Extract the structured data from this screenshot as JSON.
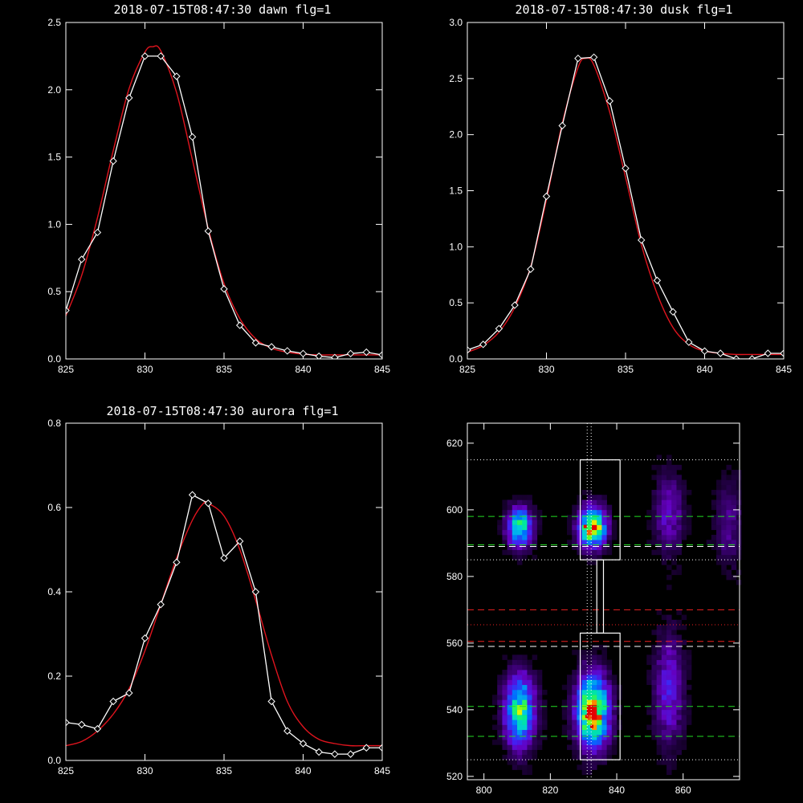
{
  "colors": {
    "background": "#000000",
    "axes": "#ffffff",
    "data_line": "#ffffff",
    "fit_line": "#e0141e",
    "green_guides": "#22dd22",
    "red_guides": "#ee2020",
    "white_guides": "#ffffff"
  },
  "chart_data": [
    {
      "type": "line",
      "title": "2018-07-15T08:47:30 dawn flg=1",
      "xlim": [
        825,
        845
      ],
      "ylim": [
        0,
        2.5
      ],
      "xticks": [
        825,
        830,
        835,
        840,
        845
      ],
      "yticks": [
        0.0,
        0.5,
        1.0,
        1.5,
        2.0,
        2.5
      ],
      "ytick_labels": [
        "0.0",
        "0.5",
        "1.0",
        "1.5",
        "2.0",
        "2.5"
      ],
      "series": [
        {
          "kind": "data",
          "marker": "diamond",
          "x": [
            825,
            826,
            827,
            828,
            829,
            830,
            831,
            832,
            833,
            834,
            835,
            836,
            837,
            838,
            839,
            840,
            841,
            842,
            843,
            844,
            845
          ],
          "y": [
            0.36,
            0.74,
            0.94,
            1.47,
            1.94,
            2.25,
            2.25,
            2.1,
            1.65,
            0.95,
            0.52,
            0.25,
            0.12,
            0.09,
            0.06,
            0.04,
            0.02,
            0.01,
            0.04,
            0.05,
            0.03
          ]
        },
        {
          "kind": "fit",
          "x": [
            825,
            826,
            827,
            828,
            829,
            830,
            830.5,
            831,
            832,
            833,
            834,
            835,
            836,
            837,
            838,
            839,
            840,
            841,
            842,
            843,
            844,
            845
          ],
          "y": [
            0.32,
            0.62,
            1.05,
            1.55,
            2.01,
            2.28,
            2.32,
            2.29,
            1.98,
            1.48,
            0.97,
            0.56,
            0.3,
            0.15,
            0.08,
            0.05,
            0.035,
            0.03,
            0.03,
            0.03,
            0.03,
            0.03
          ]
        }
      ]
    },
    {
      "type": "line",
      "title": "2018-07-15T08:47:30 dusk flg=1",
      "xlim": [
        825,
        845
      ],
      "ylim": [
        0,
        3.0
      ],
      "xticks": [
        825,
        830,
        835,
        840,
        845
      ],
      "yticks": [
        0.0,
        0.5,
        1.0,
        1.5,
        2.0,
        2.5,
        3.0
      ],
      "ytick_labels": [
        "0.0",
        "0.5",
        "1.0",
        "1.5",
        "2.0",
        "2.5",
        "3.0"
      ],
      "series": [
        {
          "kind": "data",
          "marker": "diamond",
          "x": [
            825,
            826,
            827,
            828,
            829,
            830,
            831,
            832,
            833,
            834,
            835,
            836,
            837,
            838,
            839,
            840,
            841,
            842,
            843,
            844,
            845
          ],
          "y": [
            0.08,
            0.13,
            0.27,
            0.48,
            0.8,
            1.45,
            2.08,
            2.68,
            2.69,
            2.3,
            1.7,
            1.06,
            0.7,
            0.42,
            0.15,
            0.07,
            0.05,
            0.0,
            0.0,
            0.05,
            0.05
          ]
        },
        {
          "kind": "fit",
          "x": [
            825,
            826,
            827,
            828,
            829,
            830,
            831,
            832,
            832.5,
            833,
            834,
            835,
            836,
            837,
            838,
            839,
            840,
            841,
            842,
            843,
            844,
            845
          ],
          "y": [
            0.06,
            0.12,
            0.24,
            0.46,
            0.82,
            1.42,
            2.1,
            2.6,
            2.68,
            2.62,
            2.2,
            1.62,
            1.02,
            0.58,
            0.28,
            0.13,
            0.07,
            0.05,
            0.04,
            0.04,
            0.04,
            0.04
          ]
        }
      ]
    },
    {
      "type": "line",
      "title": "2018-07-15T08:47:30 aurora flg=1",
      "xlim": [
        825,
        845
      ],
      "ylim": [
        0,
        0.8
      ],
      "xticks": [
        825,
        830,
        835,
        840,
        845
      ],
      "yticks": [
        0.0,
        0.2,
        0.4,
        0.6,
        0.8
      ],
      "ytick_labels": [
        "0.0",
        "0.2",
        "0.4",
        "0.6",
        "0.8"
      ],
      "series": [
        {
          "kind": "data",
          "marker": "diamond",
          "x": [
            825,
            826,
            827,
            828,
            829,
            830,
            831,
            832,
            833,
            834,
            835,
            836,
            837,
            838,
            839,
            840,
            841,
            842,
            843,
            844,
            845
          ],
          "y": [
            0.09,
            0.085,
            0.075,
            0.14,
            0.16,
            0.29,
            0.37,
            0.47,
            0.63,
            0.61,
            0.48,
            0.52,
            0.4,
            0.14,
            0.07,
            0.04,
            0.02,
            0.015,
            0.015,
            0.03,
            0.03
          ]
        },
        {
          "kind": "fit",
          "x": [
            825,
            826,
            827,
            828,
            829,
            830,
            831,
            832,
            833,
            833.7,
            834,
            835,
            836,
            837,
            838,
            839,
            840,
            841,
            842,
            843,
            844,
            845
          ],
          "y": [
            0.035,
            0.045,
            0.07,
            0.11,
            0.17,
            0.26,
            0.37,
            0.48,
            0.57,
            0.61,
            0.61,
            0.58,
            0.5,
            0.38,
            0.25,
            0.14,
            0.08,
            0.05,
            0.04,
            0.035,
            0.035,
            0.035
          ]
        }
      ]
    },
    {
      "type": "heatmap",
      "title": "",
      "xlim": [
        795,
        877
      ],
      "ylim": [
        519,
        626
      ],
      "xticks": [
        800,
        820,
        840,
        860
      ],
      "yticks": [
        520,
        540,
        560,
        580,
        600,
        620
      ],
      "blobs": [
        {
          "x": 810,
          "y": 539,
          "amp": 0.72,
          "sx": 3.0,
          "sy": 7
        },
        {
          "x": 810,
          "y": 594,
          "amp": 0.66,
          "sx": 2.5,
          "sy": 4
        },
        {
          "x": 832,
          "y": 539,
          "amp": 1.0,
          "sx": 3.2,
          "sy": 7
        },
        {
          "x": 832,
          "y": 594,
          "amp": 0.92,
          "sx": 2.7,
          "sy": 4
        },
        {
          "x": 855,
          "y": 545,
          "amp": 0.28,
          "sx": 3.0,
          "sy": 11
        },
        {
          "x": 855,
          "y": 598,
          "amp": 0.22,
          "sx": 3.0,
          "sy": 8
        },
        {
          "x": 873,
          "y": 595,
          "amp": 0.14,
          "sx": 3.0,
          "sy": 9
        }
      ],
      "boxes": [
        {
          "x0": 829,
          "x1": 841,
          "y0": 585,
          "y1": 615
        },
        {
          "x0": 829,
          "x1": 841,
          "y0": 525,
          "y1": 563
        },
        {
          "x0": 834,
          "x1": 836,
          "y0": 563,
          "y1": 585
        }
      ],
      "vlines": [
        831.1,
        832.3
      ],
      "hlines": [
        {
          "y": 615,
          "color": "white",
          "style": "dotted"
        },
        {
          "y": 598,
          "color": "green",
          "style": "dashed"
        },
        {
          "y": 589.5,
          "color": "green",
          "style": "dashed"
        },
        {
          "y": 589,
          "color": "white",
          "style": "dashed"
        },
        {
          "y": 585,
          "color": "white",
          "style": "dotted"
        },
        {
          "y": 570,
          "color": "red",
          "style": "dashed"
        },
        {
          "y": 565.5,
          "color": "red",
          "style": "dotted"
        },
        {
          "y": 560.5,
          "color": "red",
          "style": "dashed"
        },
        {
          "y": 559,
          "color": "white",
          "style": "dashed"
        },
        {
          "y": 541,
          "color": "green",
          "style": "dashed"
        },
        {
          "y": 532,
          "color": "green",
          "style": "dashed"
        },
        {
          "y": 525,
          "color": "white",
          "style": "dotted"
        }
      ],
      "peaks": [
        {
          "x": 830.5,
          "y": 595
        },
        {
          "x": 832.5,
          "y": 540
        },
        {
          "x": 831.0,
          "y": 538
        },
        {
          "x": 832.5,
          "y": 535
        }
      ]
    }
  ]
}
